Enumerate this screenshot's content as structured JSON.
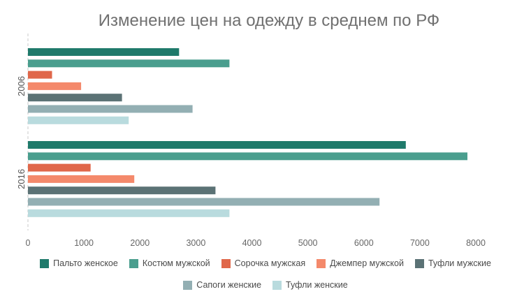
{
  "chart_data": {
    "type": "bar",
    "orientation": "horizontal",
    "title": "Изменение цен на одежду в среднем по РФ",
    "categories": [
      "2006",
      "2016"
    ],
    "series": [
      {
        "name": "Пальто женское",
        "color": "#1f7a6b",
        "values": [
          2700,
          6750
        ]
      },
      {
        "name": "Костюм мужской",
        "color": "#4a9e8e",
        "values": [
          3600,
          7850
        ]
      },
      {
        "name": "Сорочка мужская",
        "color": "#e0674a",
        "values": [
          430,
          1120
        ]
      },
      {
        "name": "Джемпер мужской",
        "color": "#f4896b",
        "values": [
          950,
          1900
        ]
      },
      {
        "name": "Туфли мужские",
        "color": "#5b7275",
        "values": [
          1680,
          3350
        ]
      },
      {
        "name": "Сапоги женские",
        "color": "#93afb3",
        "values": [
          2940,
          6280
        ]
      },
      {
        "name": "Туфли женские",
        "color": "#b9dbde",
        "values": [
          1800,
          3600
        ]
      }
    ],
    "xlim": [
      0,
      8000
    ],
    "xticks": [
      0,
      1000,
      2000,
      3000,
      4000,
      5000,
      6000,
      7000,
      8000
    ],
    "grid": false,
    "legend_position": "bottom"
  }
}
